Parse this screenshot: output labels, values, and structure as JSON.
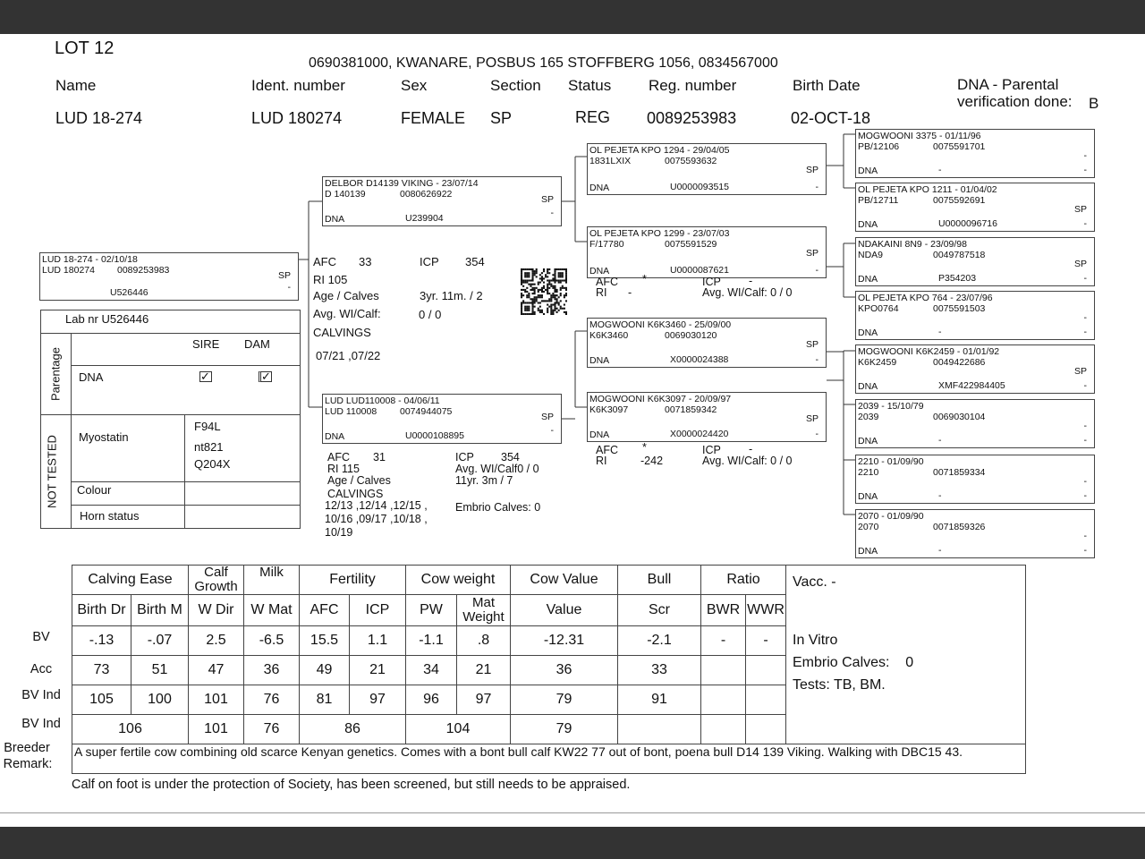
{
  "lot": "LOT 12",
  "address": "0690381000, KWANARE, POSBUS 165 STOFFBERG 1056, 0834567000",
  "header": {
    "labels": {
      "name": "Name",
      "ident": "Ident. number",
      "sex": "Sex",
      "section": "Section",
      "status": "Status",
      "reg": "Reg. number",
      "birth": "Birth Date",
      "dna1": "DNA - Parental",
      "dna2": "verification done:"
    },
    "values": {
      "name": "LUD 18-274",
      "ident": "LUD 180274",
      "sex": "FEMALE",
      "section": "SP",
      "status": "REG",
      "reg": "0089253983",
      "birth": "02-OCT-18",
      "dna": "B"
    }
  },
  "pedigree": {
    "animal": {
      "title": "LUD 18-274 - 02/10/18",
      "ident": "LUD 180274",
      "reg": "0089253983",
      "section": "SP",
      "dna_label": "",
      "dna": "U526446",
      "dna_status": "-"
    },
    "sire": {
      "title": "DELBOR D14139 VIKING - 23/07/14",
      "ident": "D  140139",
      "reg": "0080626922",
      "section": "SP",
      "dna_label": "DNA",
      "dna": "U239904",
      "dna_status": "-"
    },
    "dam": {
      "title": "LUD LUD110008 - 04/06/11",
      "ident": "LUD 110008",
      "reg": "0074944075",
      "section": "SP",
      "dna_label": "DNA",
      "dna": "U0000108895",
      "dna_status": "-"
    },
    "ss": {
      "title": "OL PEJETA KPO 1294 - 29/04/05",
      "ident": "1831LXIX",
      "reg": "0075593632",
      "section": "SP",
      "dna_label": "DNA",
      "dna": "U0000093515",
      "dna_status": "-"
    },
    "sd": {
      "title": "OL PEJETA KPO 1299 - 23/07/03",
      "ident": "F/17780",
      "reg": "0075591529",
      "section": "SP",
      "dna_label": "DNA",
      "dna": "U0000087621",
      "dna_status": "-"
    },
    "ds": {
      "title": "MOGWOONI K6K3460 - 25/09/00",
      "ident": "K6K3460",
      "reg": "0069030120",
      "section": "SP",
      "dna_label": "DNA",
      "dna": "X0000024388",
      "dna_status": "-"
    },
    "dd": {
      "title": "MOGWOONI K6K3097 - 20/09/97",
      "ident": "K6K3097",
      "reg": "0071859342",
      "section": "SP",
      "dna_label": "DNA",
      "dna": "X0000024420",
      "dna_status": "-"
    },
    "g3": [
      {
        "title": "MOGWOONI 3375 - 01/11/96",
        "ident": "PB/12106",
        "reg": "0075591701",
        "section": "-",
        "dna_label": "DNA",
        "dna": "-",
        "dna_status": "-"
      },
      {
        "title": "OL PEJETA KPO 1211 - 01/04/02",
        "ident": "PB/12711",
        "reg": "0075592691",
        "section": "SP",
        "dna_label": "DNA",
        "dna": "U0000096716",
        "dna_status": "-"
      },
      {
        "title": "NDAKAINI 8N9 - 23/09/98",
        "ident": "NDA9",
        "reg": "0049787518",
        "section": "SP",
        "dna_label": "DNA",
        "dna": "P354203",
        "dna_status": "-"
      },
      {
        "title": "OL PEJETA KPO 764 - 23/07/96",
        "ident": "KPO0764",
        "reg": "0075591503",
        "section": "-",
        "dna_label": "DNA",
        "dna": "-",
        "dna_status": "-"
      },
      {
        "title": "MOGWOONI K6K2459 - 01/01/92",
        "ident": "K6K2459",
        "reg": "0049422686",
        "section": "SP",
        "dna_label": "DNA",
        "dna": "XMF422984405",
        "dna_status": "-"
      },
      {
        "title": "2039 - 15/10/79",
        "ident": "2039",
        "reg": "0069030104",
        "section": "-",
        "dna_label": "DNA",
        "dna": "-",
        "dna_status": "-"
      },
      {
        "title": "2210 - 01/09/90",
        "ident": "2210",
        "reg": "0071859334",
        "section": "-",
        "dna_label": "DNA",
        "dna": "-",
        "dna_status": "-"
      },
      {
        "title": "2070 - 01/09/90",
        "ident": "2070",
        "reg": "0071859326",
        "section": "-",
        "dna_label": "DNA",
        "dna": "-",
        "dna_status": "-"
      }
    ]
  },
  "sire_stats": {
    "afc_l": "AFC",
    "afc": "33",
    "icp_l": "ICP",
    "icp": "354",
    "ri": "RI  105",
    "age_l": "Age / Calves",
    "age": "3yr. 11m.  / 2",
    "wi_l": "Avg. WI/Calf:",
    "wi": "0 / 0",
    "calv_l": "CALVINGS",
    "calv": "07/21 ,07/22"
  },
  "dam_stats": {
    "afc_l": "AFC",
    "afc": "31",
    "ri": "RI  115",
    "age_l": "Age / Calves",
    "calv_l": "CALVINGS",
    "calv1": "12/13 ,12/14 ,12/15 ,",
    "calv2": "10/16 ,09/17 ,10/18 ,",
    "calv3": "10/19",
    "icp_l": "ICP",
    "icp": "354",
    "wi": "Avg. WI/Calf0 / 0",
    "age": "11yr. 3m  / 7",
    "embrio": "Embrio Calves: 0"
  },
  "sd_stats": {
    "afc_l": "AFC",
    "afc": "*",
    "icp_l": "ICP",
    "icp": "-",
    "ri_l": "RI",
    "ri": "-",
    "wi": "Avg. WI/Calf:  0 / 0"
  },
  "dd_stats": {
    "afc_l": "AFC",
    "afc": "*",
    "icp_l": "ICP",
    "icp": "-",
    "ri_l": "RI",
    "ri": "-242",
    "wi": "Avg. WI/Calf:  0 / 0"
  },
  "lab": {
    "lab_nr": "Lab nr  U526446",
    "parentage": "Parentage",
    "sire": "SIRE",
    "dam": "DAM",
    "dna": "DNA",
    "sire_checked": true,
    "dam_checked": true,
    "not_tested": "NOT TESTED",
    "myostatin": "Myostatin",
    "myo": [
      "F94L",
      "nt821",
      "Q204X"
    ],
    "colour": "Colour",
    "horn": "Horn status"
  },
  "bv_table": {
    "groups": [
      "Calving Ease",
      "Calf Growth",
      "Milk",
      "Fertility",
      "Cow weight",
      "Cow Value",
      "Bull",
      "Ratio"
    ],
    "sub": [
      "Birth Dr",
      "Birth M",
      "W Dir",
      "W Mat",
      "AFC",
      "ICP",
      "PW",
      "Mat Weight",
      "Value",
      "Scr",
      "BWR",
      "WWR"
    ],
    "row_labels": [
      "BV",
      "Acc",
      "BV Ind",
      "BV Ind"
    ],
    "bv": [
      "-.13",
      "-.07",
      "2.5",
      "-6.5",
      "15.5",
      "1.1",
      "-1.1",
      ".8",
      "-12.31",
      "-2.1",
      "-",
      "-"
    ],
    "acc": [
      "73",
      "51",
      "47",
      "36",
      "49",
      "21",
      "34",
      "21",
      "36",
      "33",
      "",
      ""
    ],
    "bvind": [
      "105",
      "100",
      "101",
      "76",
      "81",
      "97",
      "96",
      "97",
      "79",
      "91",
      "",
      ""
    ],
    "bvind2": [
      "106",
      "101",
      "76",
      "86",
      "104",
      "79",
      "",
      "",
      ""
    ],
    "vacc": "Vacc. -",
    "in_vitro": "In Vitro",
    "embrio": "Embrio Calves:    0",
    "tests": "Tests: TB, BM.",
    "remark_label1": "Breeder",
    "remark_label2": "Remark:",
    "remark": "A super fertile cow combining old scarce Kenyan genetics. Comes with a bont bull calf  KW22 77 out of bont, poena bull  D14 139 Viking. Walking with DBC15 43."
  },
  "footer_note": "Calf on foot is under the protection of Society, has been screened, but still needs to be appraised."
}
